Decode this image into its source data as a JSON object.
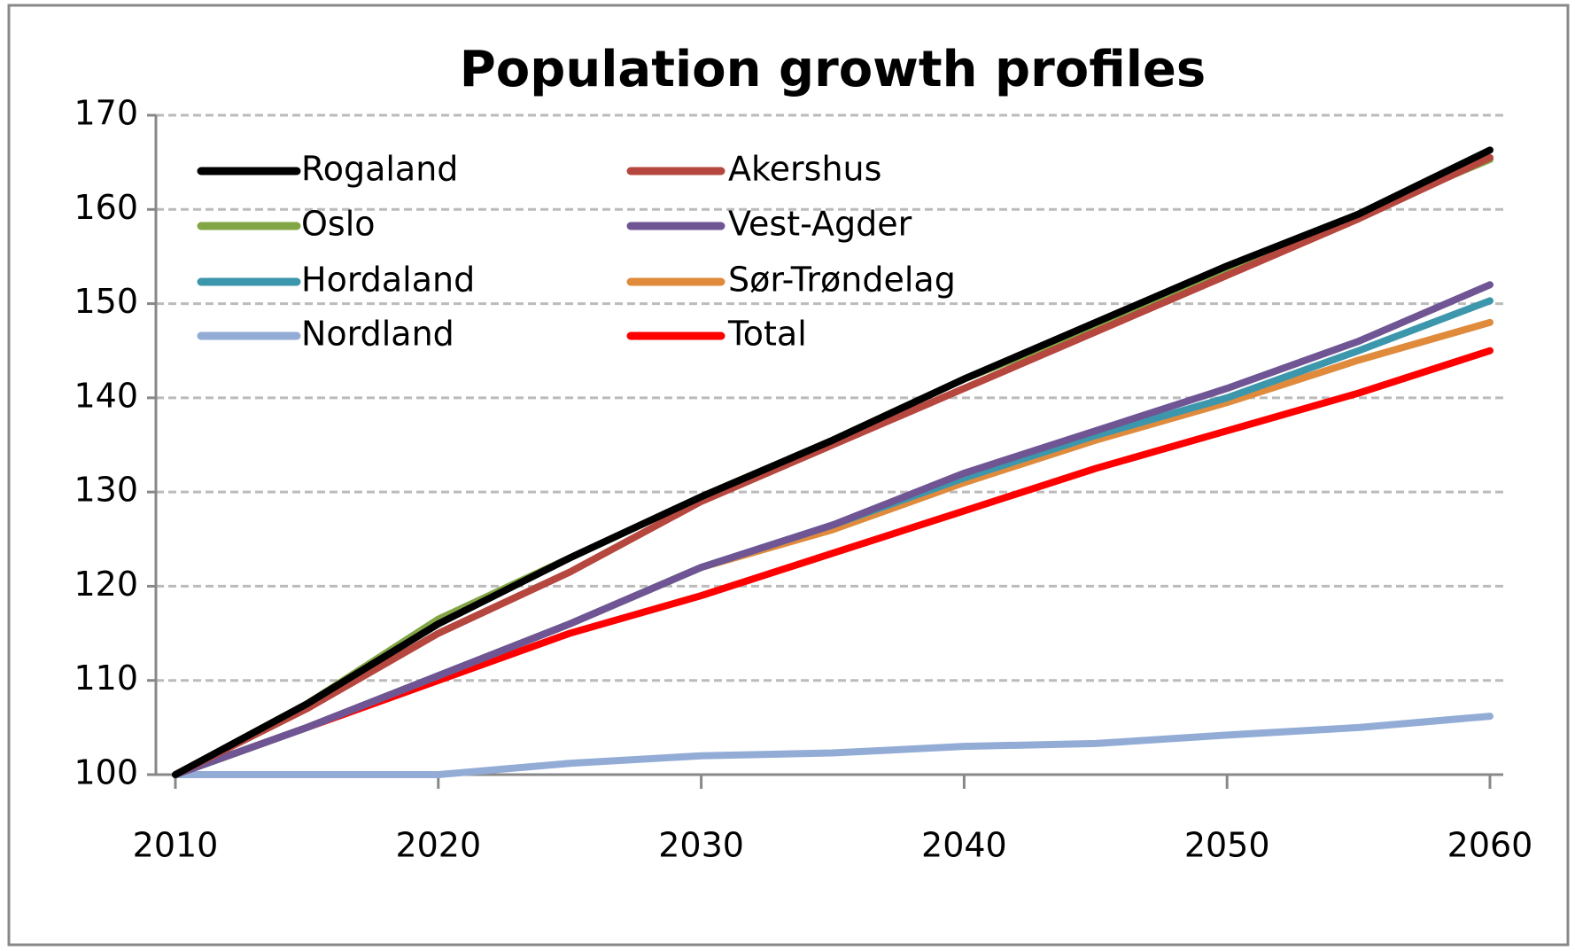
{
  "chart_data": {
    "type": "line",
    "title": "Population growth profiles",
    "x": [
      2010,
      2015,
      2020,
      2025,
      2030,
      2035,
      2040,
      2045,
      2050,
      2055,
      2060
    ],
    "series": [
      {
        "name": "Rogaland",
        "color": "#000000",
        "values": [
          100,
          107.5,
          116,
          123,
          129.5,
          135.5,
          142,
          148,
          154,
          159.5,
          166.3
        ]
      },
      {
        "name": "Akershus",
        "color": "#b5473f",
        "values": [
          100,
          107,
          115,
          121.5,
          129,
          135,
          141,
          147,
          153,
          159,
          165.5
        ]
      },
      {
        "name": "Oslo",
        "color": "#82a645",
        "values": [
          100,
          107.5,
          116.5,
          123,
          129.5,
          135.5,
          142,
          147.5,
          153.5,
          159.5,
          165.3
        ]
      },
      {
        "name": "Vest-Agder",
        "color": "#6f5593",
        "values": [
          100,
          105,
          110.5,
          116,
          122,
          126.5,
          132,
          136.5,
          141,
          146,
          152
        ]
      },
      {
        "name": "Hordaland",
        "color": "#3d97ac",
        "values": [
          100,
          105,
          110.5,
          116,
          122,
          126.5,
          131.5,
          136,
          140,
          145,
          150.3
        ]
      },
      {
        "name": "Sør-Trøndelag",
        "color": "#e08b3c",
        "values": [
          100,
          105,
          110.5,
          116,
          122,
          126,
          131,
          135.5,
          139.5,
          144,
          148
        ]
      },
      {
        "name": "Nordland",
        "color": "#93acd6",
        "values": [
          100,
          100,
          100,
          101.2,
          102,
          102.3,
          103,
          103.3,
          104.2,
          105,
          106.2
        ]
      },
      {
        "name": "Total",
        "color": "#ff0000",
        "values": [
          100,
          105,
          110,
          115,
          119,
          123.5,
          128,
          132.5,
          136.5,
          140.5,
          145
        ]
      }
    ],
    "xlim": [
      2010,
      2060
    ],
    "xticks": [
      2010,
      2020,
      2030,
      2040,
      2050,
      2060
    ],
    "ylim": [
      100,
      170
    ],
    "yticks": [
      100,
      110,
      120,
      130,
      140,
      150,
      160,
      170
    ],
    "grid": true,
    "legend": "top-left"
  }
}
